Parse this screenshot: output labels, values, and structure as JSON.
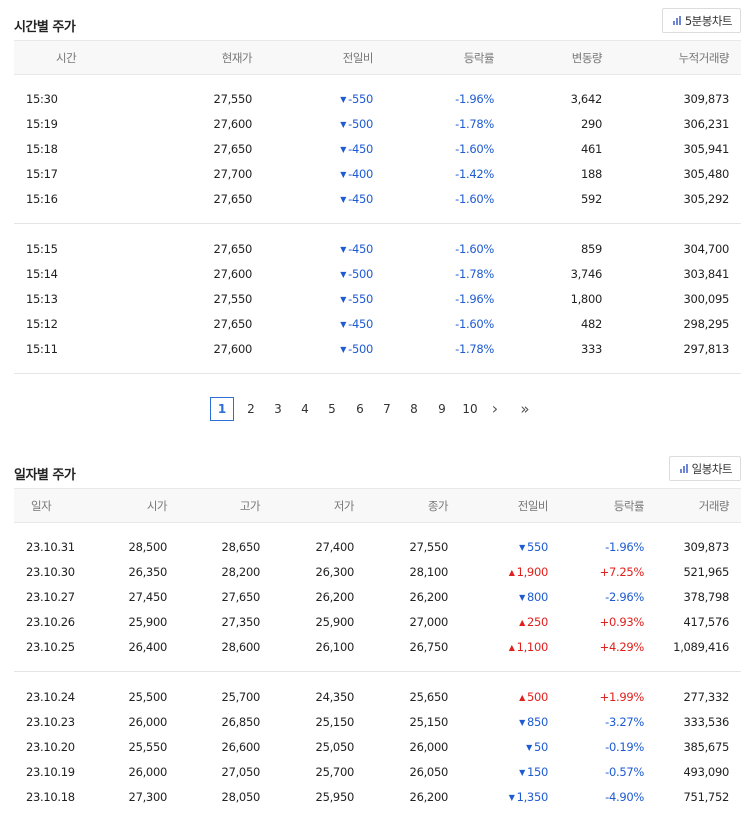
{
  "time_section": {
    "title": "시간별 주가",
    "chart_button": "5분봉차트",
    "headers": [
      "시간",
      "현재가",
      "전일비",
      "등락률",
      "변동량",
      "누적거래량"
    ],
    "groups": [
      [
        {
          "time": "15:30",
          "price": "27,550",
          "change": "-550",
          "dir": "down",
          "rate": "-1.96%",
          "vol": "3,642",
          "cum": "309,873"
        },
        {
          "time": "15:19",
          "price": "27,600",
          "change": "-500",
          "dir": "down",
          "rate": "-1.78%",
          "vol": "290",
          "cum": "306,231"
        },
        {
          "time": "15:18",
          "price": "27,650",
          "change": "-450",
          "dir": "down",
          "rate": "-1.60%",
          "vol": "461",
          "cum": "305,941"
        },
        {
          "time": "15:17",
          "price": "27,700",
          "change": "-400",
          "dir": "down",
          "rate": "-1.42%",
          "vol": "188",
          "cum": "305,480"
        },
        {
          "time": "15:16",
          "price": "27,650",
          "change": "-450",
          "dir": "down",
          "rate": "-1.60%",
          "vol": "592",
          "cum": "305,292"
        }
      ],
      [
        {
          "time": "15:15",
          "price": "27,650",
          "change": "-450",
          "dir": "down",
          "rate": "-1.60%",
          "vol": "859",
          "cum": "304,700"
        },
        {
          "time": "15:14",
          "price": "27,600",
          "change": "-500",
          "dir": "down",
          "rate": "-1.78%",
          "vol": "3,746",
          "cum": "303,841"
        },
        {
          "time": "15:13",
          "price": "27,550",
          "change": "-550",
          "dir": "down",
          "rate": "-1.96%",
          "vol": "1,800",
          "cum": "300,095"
        },
        {
          "time": "15:12",
          "price": "27,650",
          "change": "-450",
          "dir": "down",
          "rate": "-1.60%",
          "vol": "482",
          "cum": "298,295"
        },
        {
          "time": "15:11",
          "price": "27,600",
          "change": "-500",
          "dir": "down",
          "rate": "-1.78%",
          "vol": "333",
          "cum": "297,813"
        }
      ]
    ]
  },
  "pagination": {
    "active": "1",
    "pages": [
      "1",
      "2",
      "3",
      "4",
      "5",
      "6",
      "7",
      "8",
      "9",
      "10"
    ],
    "next": "›",
    "last": "»"
  },
  "daily_section": {
    "title": "일자별 주가",
    "chart_button": "일봉차트",
    "headers": [
      "일자",
      "시가",
      "고가",
      "저가",
      "종가",
      "전일비",
      "등락률",
      "거래량"
    ],
    "groups": [
      [
        {
          "date": "23.10.31",
          "open": "28,500",
          "high": "28,650",
          "low": "27,400",
          "close": "27,550",
          "change": "550",
          "dir": "down",
          "rate": "-1.96%",
          "vol": "309,873"
        },
        {
          "date": "23.10.30",
          "open": "26,350",
          "high": "28,200",
          "low": "26,300",
          "close": "28,100",
          "change": "1,900",
          "dir": "up",
          "rate": "+7.25%",
          "vol": "521,965"
        },
        {
          "date": "23.10.27",
          "open": "27,450",
          "high": "27,650",
          "low": "26,200",
          "close": "26,200",
          "change": "800",
          "dir": "down",
          "rate": "-2.96%",
          "vol": "378,798"
        },
        {
          "date": "23.10.26",
          "open": "25,900",
          "high": "27,350",
          "low": "25,900",
          "close": "27,000",
          "change": "250",
          "dir": "up",
          "rate": "+0.93%",
          "vol": "417,576"
        },
        {
          "date": "23.10.25",
          "open": "26,400",
          "high": "28,600",
          "low": "26,100",
          "close": "26,750",
          "change": "1,100",
          "dir": "up",
          "rate": "+4.29%",
          "vol": "1,089,416"
        }
      ],
      [
        {
          "date": "23.10.24",
          "open": "25,500",
          "high": "25,700",
          "low": "24,350",
          "close": "25,650",
          "change": "500",
          "dir": "up",
          "rate": "+1.99%",
          "vol": "277,332"
        },
        {
          "date": "23.10.23",
          "open": "26,000",
          "high": "26,850",
          "low": "25,150",
          "close": "25,150",
          "change": "850",
          "dir": "down",
          "rate": "-3.27%",
          "vol": "333,536"
        },
        {
          "date": "23.10.20",
          "open": "25,550",
          "high": "26,600",
          "low": "25,050",
          "close": "26,000",
          "change": "50",
          "dir": "down",
          "rate": "-0.19%",
          "vol": "385,675"
        },
        {
          "date": "23.10.19",
          "open": "26,000",
          "high": "27,050",
          "low": "25,700",
          "close": "26,050",
          "change": "150",
          "dir": "down",
          "rate": "-0.57%",
          "vol": "493,090"
        },
        {
          "date": "23.10.18",
          "open": "27,300",
          "high": "28,050",
          "low": "25,950",
          "close": "26,200",
          "change": "1,350",
          "dir": "down",
          "rate": "-4.90%",
          "vol": "751,752"
        }
      ]
    ]
  },
  "colors": {
    "up": "#e0201d",
    "down": "#1e5bd2",
    "accent": "#2d6fd6"
  },
  "icons": {
    "up": "▲",
    "down": "▼",
    "chart": "bar-chart-icon"
  }
}
